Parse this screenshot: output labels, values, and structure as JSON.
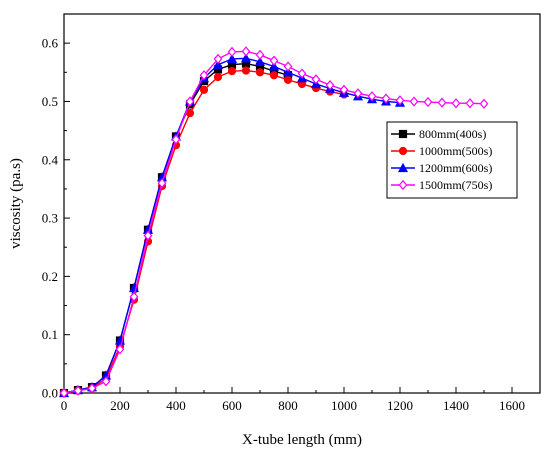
{
  "chart_data": {
    "type": "line",
    "title": "",
    "xlabel": "X-tube length (mm)",
    "ylabel": "viscosity (pa.s)",
    "xlim": [
      0,
      1700
    ],
    "ylim": [
      0,
      0.65
    ],
    "xticks": [
      0,
      200,
      400,
      600,
      800,
      1000,
      1200,
      1400,
      1600
    ],
    "xtick_labels": [
      "0",
      "200",
      "400",
      "600",
      "800",
      "1000",
      "1200",
      "1400",
      "1600"
    ],
    "yticks": [
      0.0,
      0.1,
      0.2,
      0.3,
      0.4,
      0.5,
      0.6
    ],
    "ytick_labels": [
      "0.0",
      "0.1",
      "0.2",
      "0.3",
      "0.4",
      "0.5",
      "0.6"
    ],
    "grid": false,
    "legend_position": "right",
    "series": [
      {
        "name": "800mm(400s)",
        "color": "#000000",
        "marker": "square",
        "x": [
          0,
          50,
          100,
          150,
          200,
          250,
          300,
          350,
          400,
          450,
          500,
          550,
          600,
          650,
          700,
          750,
          800
        ],
        "y": [
          0.0,
          0.005,
          0.01,
          0.03,
          0.09,
          0.18,
          0.28,
          0.37,
          0.44,
          0.495,
          0.535,
          0.555,
          0.563,
          0.565,
          0.56,
          0.552,
          0.545
        ]
      },
      {
        "name": "1000mm(500s)",
        "color": "#ff0000",
        "marker": "circle",
        "x": [
          0,
          50,
          100,
          150,
          200,
          250,
          300,
          350,
          400,
          450,
          500,
          550,
          600,
          650,
          700,
          750,
          800,
          850,
          900,
          950,
          1000
        ],
        "y": [
          0.0,
          0.004,
          0.008,
          0.025,
          0.08,
          0.16,
          0.26,
          0.355,
          0.425,
          0.48,
          0.52,
          0.542,
          0.552,
          0.553,
          0.55,
          0.545,
          0.537,
          0.53,
          0.523,
          0.517,
          0.512
        ]
      },
      {
        "name": "1200mm(600s)",
        "color": "#0000ff",
        "marker": "triangle",
        "x": [
          0,
          50,
          100,
          150,
          200,
          250,
          300,
          350,
          400,
          450,
          500,
          550,
          600,
          650,
          700,
          750,
          800,
          850,
          900,
          950,
          1000,
          1050,
          1100,
          1150,
          1200
        ],
        "y": [
          0.0,
          0.005,
          0.01,
          0.03,
          0.09,
          0.18,
          0.28,
          0.37,
          0.44,
          0.5,
          0.54,
          0.563,
          0.573,
          0.574,
          0.568,
          0.56,
          0.55,
          0.54,
          0.53,
          0.522,
          0.515,
          0.509,
          0.504,
          0.5,
          0.498
        ]
      },
      {
        "name": "1500mm(750s)",
        "color": "#ff00ff",
        "marker": "diamond",
        "x": [
          0,
          50,
          100,
          150,
          200,
          250,
          300,
          350,
          400,
          450,
          500,
          550,
          600,
          650,
          700,
          750,
          800,
          850,
          900,
          950,
          1000,
          1050,
          1100,
          1150,
          1200,
          1250,
          1300,
          1350,
          1400,
          1450,
          1500
        ],
        "y": [
          0.0,
          0.004,
          0.008,
          0.02,
          0.075,
          0.165,
          0.27,
          0.36,
          0.435,
          0.5,
          0.545,
          0.573,
          0.585,
          0.586,
          0.58,
          0.57,
          0.56,
          0.548,
          0.538,
          0.528,
          0.52,
          0.514,
          0.509,
          0.505,
          0.502,
          0.5,
          0.499,
          0.498,
          0.497,
          0.497,
          0.496
        ]
      }
    ]
  }
}
